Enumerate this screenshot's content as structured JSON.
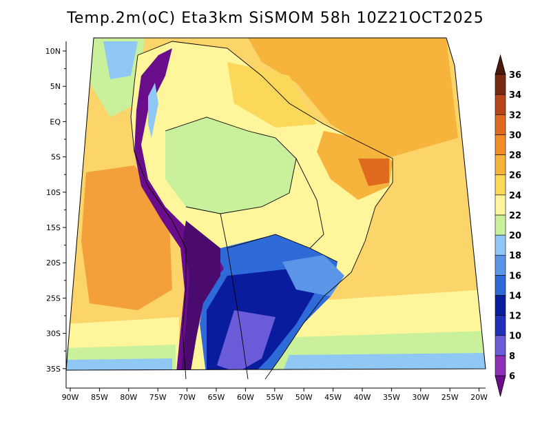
{
  "title": "Temp.2m(oC) Eta3km SiSMOM 58h 10Z21OCT2025",
  "map": {
    "variable": "2 m temperature",
    "units": "oC",
    "lat_labels": [
      "10N",
      "5N",
      "EQ",
      "5S",
      "10S",
      "15S",
      "20S",
      "25S",
      "30S",
      "35S"
    ],
    "lon_labels": [
      "90W",
      "85W",
      "80W",
      "75W",
      "70W",
      "65W",
      "60W",
      "55W",
      "50W",
      "45W",
      "40W",
      "35W",
      "30W",
      "25W",
      "20W"
    ]
  },
  "colorbar": {
    "levels": [
      "6",
      "8",
      "10",
      "12",
      "14",
      "16",
      "18",
      "20",
      "22",
      "24",
      "26",
      "28",
      "30",
      "32",
      "34",
      "36"
    ],
    "colors": [
      "#6a0d8a",
      "#8e2fb4",
      "#6a5bd8",
      "#1f2fb8",
      "#0a1c9e",
      "#2f6bd8",
      "#5a95e8",
      "#8fc8f5",
      "#c9f09a",
      "#fff59a",
      "#fbd75a",
      "#f7b43c",
      "#f38c28",
      "#e06a1e",
      "#b8461a",
      "#7a2a12",
      "#4a1a0a"
    ]
  }
}
